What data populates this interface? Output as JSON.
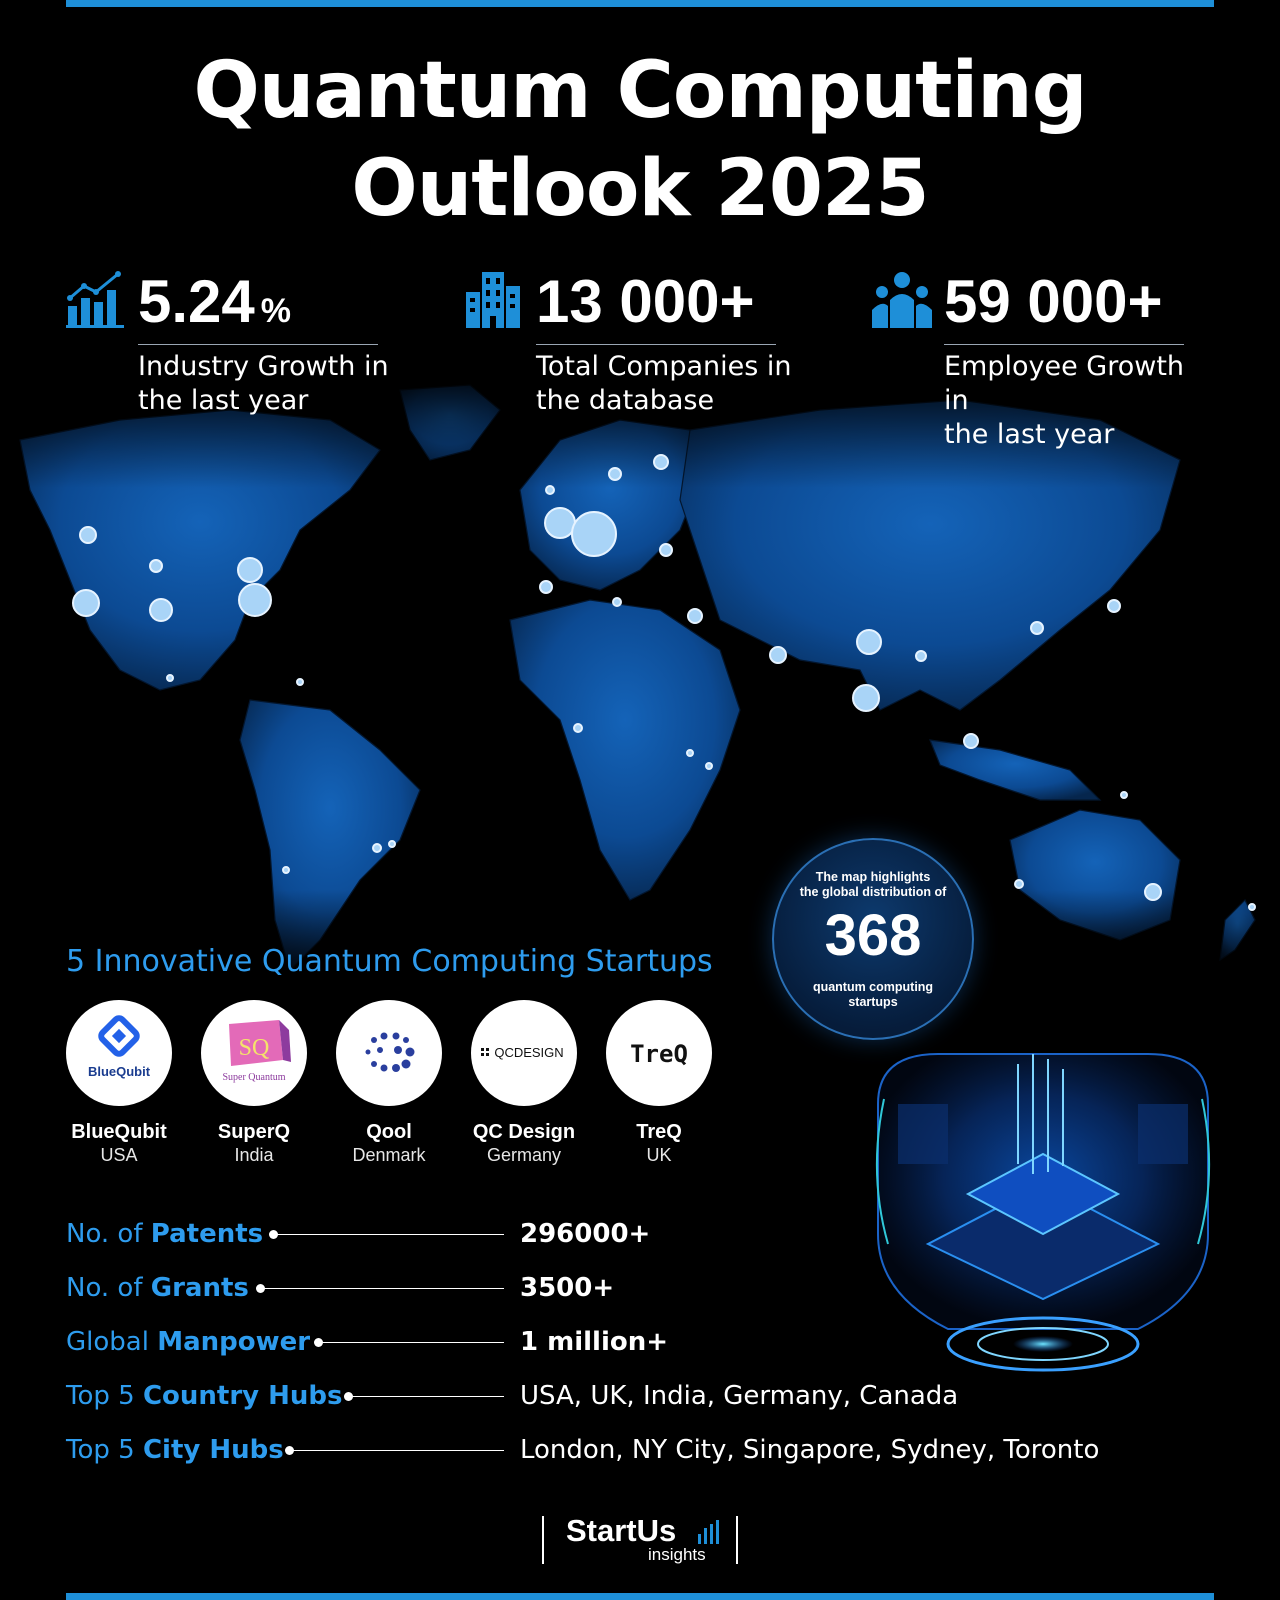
{
  "title": {
    "line1": "Quantum Computing",
    "line2": "Outlook 2025"
  },
  "stats": [
    {
      "icon": "growth-chart-icon",
      "value": "5.24",
      "unit": "%",
      "label_line1": "Industry Growth in",
      "label_line2": "the last year"
    },
    {
      "icon": "building-icon",
      "value": "13 000+",
      "unit": "",
      "label_line1": "Total Companies in",
      "label_line2": "the database"
    },
    {
      "icon": "people-icon",
      "value": "59 000+",
      "unit": "",
      "label_line1": "Employee Growth in",
      "label_line2": "the last year"
    }
  ],
  "callout": {
    "line1": "The map highlights",
    "line2": "the global distribution of",
    "number": "368",
    "line3": "quantum computing",
    "line4": "startups"
  },
  "startups_section": {
    "title": "5 Innovative Quantum Computing Startups",
    "items": [
      {
        "name": "BlueQubit",
        "country": "USA",
        "logo_text": "BlueQubit"
      },
      {
        "name": "SuperQ",
        "country": "India",
        "logo_text": "Super Quantum",
        "logo_mark": "SQ"
      },
      {
        "name": "Qool",
        "country": "Denmark"
      },
      {
        "name": "QC Design",
        "country": "Germany",
        "logo_text": "QCDESIGN"
      },
      {
        "name": "TreQ",
        "country": "UK",
        "logo_text": "TreQ"
      }
    ]
  },
  "facts": [
    {
      "prefix": "No. of ",
      "bold": "Patents",
      "value": "296000+",
      "value_bold": true
    },
    {
      "prefix": "No. of ",
      "bold": "Grants",
      "value": "3500+",
      "value_bold": true
    },
    {
      "prefix": "Global ",
      "bold": "Manpower",
      "value": "1 million+",
      "value_bold": true
    },
    {
      "prefix": "Top 5 ",
      "bold": "Country Hubs",
      "value": "USA, UK, India, Germany, Canada",
      "value_bold": false
    },
    {
      "prefix": "Top 5 ",
      "bold": "City Hubs",
      "value": "London, NY City, Singapore, Sydney, Toronto",
      "value_bold": false
    }
  ],
  "brand": {
    "name": "StartUs",
    "sub": "insights"
  },
  "colors": {
    "accent": "#2e9cee",
    "bar": "#1e8fd8",
    "background": "#000000",
    "map": "#0d4f9c"
  }
}
